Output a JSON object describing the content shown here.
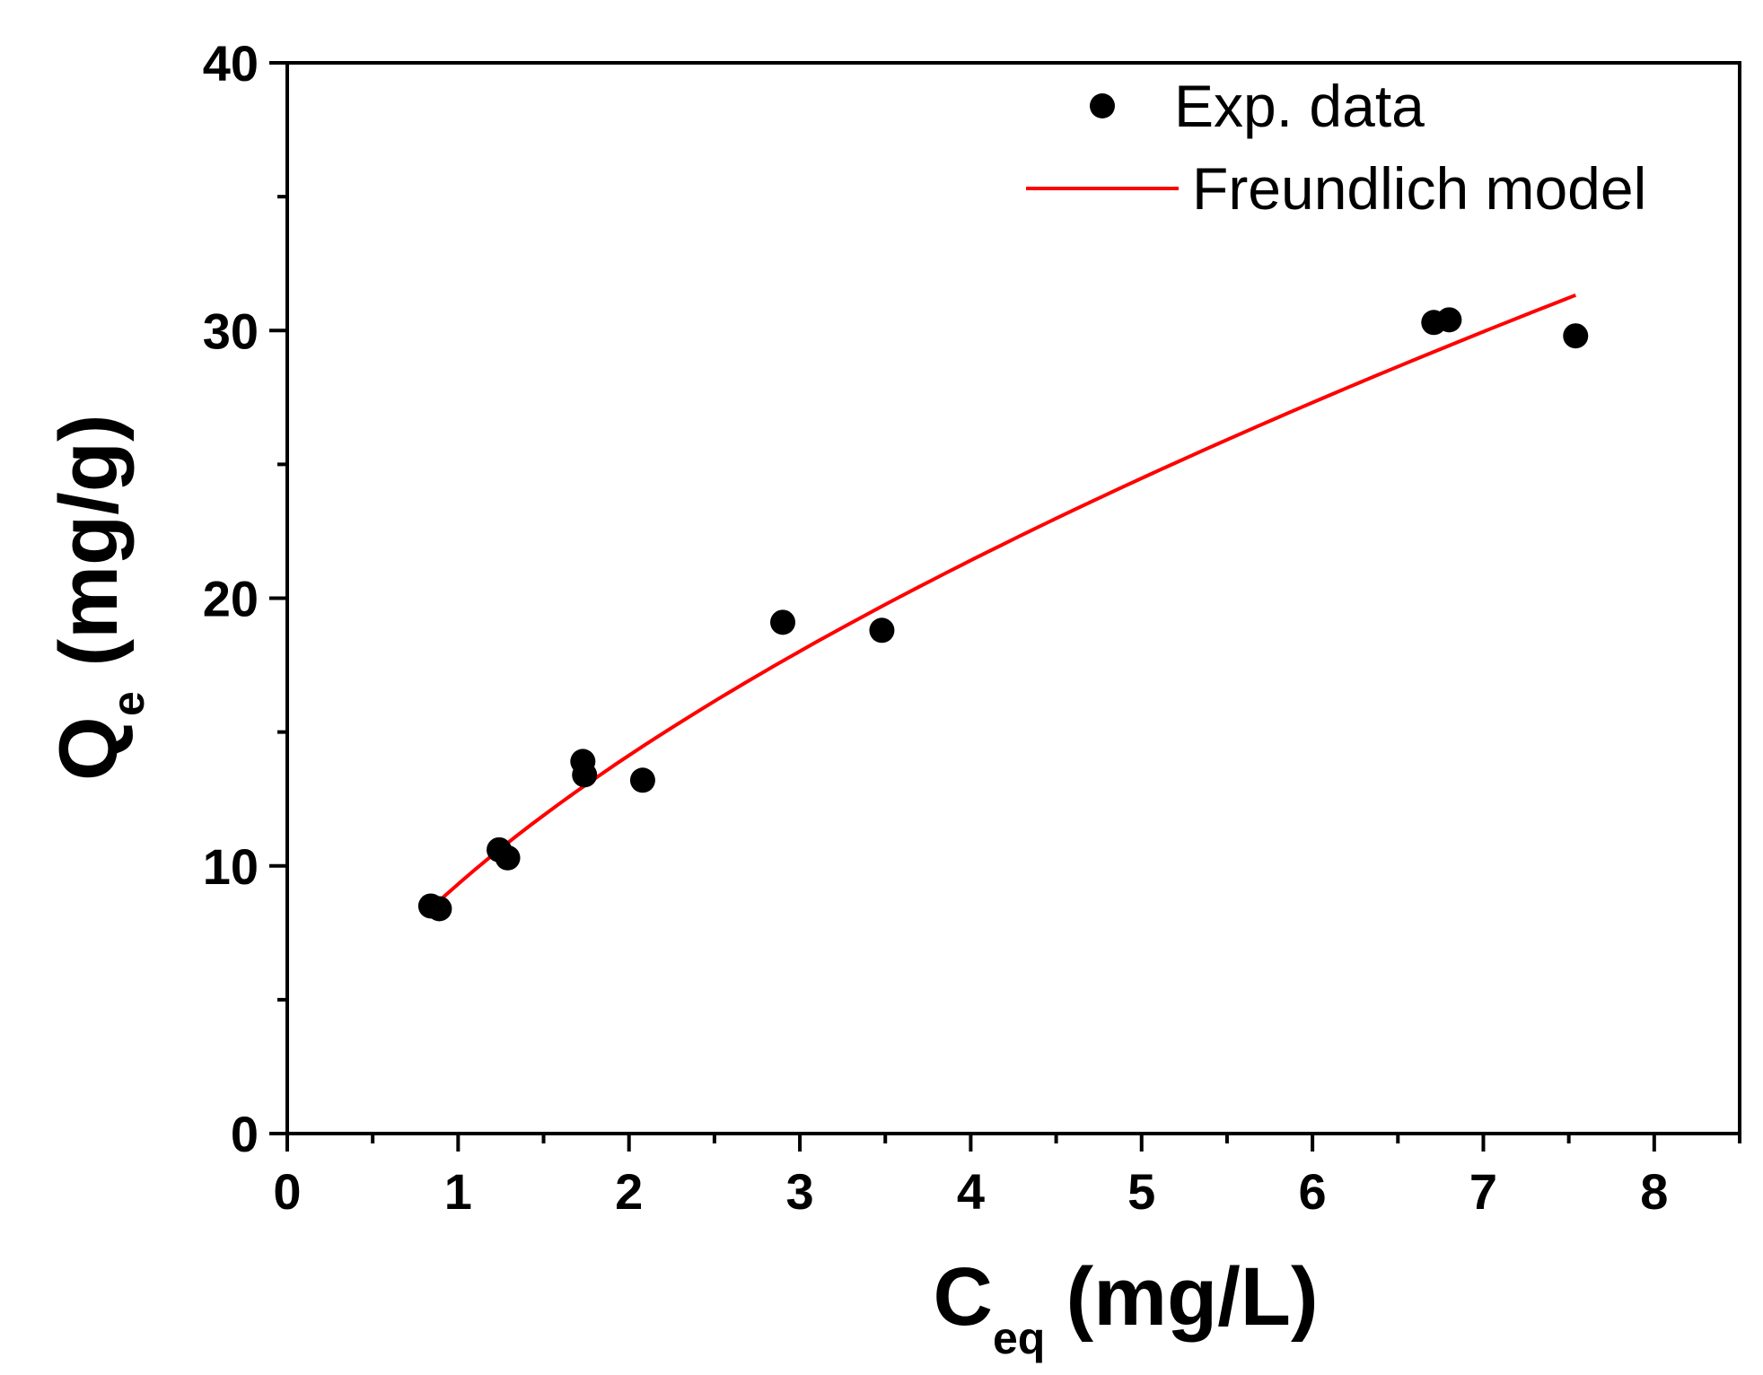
{
  "chart_data": {
    "type": "scatter",
    "x_axis": {
      "label_main": "C",
      "label_sub": "eq",
      "label_unit": " (mg/L)",
      "range": [
        0,
        8.5
      ],
      "major_ticks": [
        0,
        1,
        2,
        3,
        4,
        5,
        6,
        7,
        8
      ],
      "tick_labels": [
        "0",
        "1",
        "2",
        "3",
        "4",
        "5",
        "6",
        "7",
        "8"
      ],
      "minor_ticks": [
        0.5,
        1.5,
        2.5,
        3.5,
        4.5,
        5.5,
        6.5,
        7.5,
        8.5
      ]
    },
    "y_axis": {
      "label_main": "Q",
      "label_sub": "e",
      "label_unit": " (mg/g)",
      "range": [
        0,
        40
      ],
      "major_ticks": [
        0,
        10,
        20,
        30,
        40
      ],
      "tick_labels": [
        "0",
        "10",
        "20",
        "30",
        "40"
      ],
      "minor_ticks": [
        5,
        15,
        25,
        35
      ]
    },
    "grid": false,
    "legend": {
      "position": "top-right",
      "entries": [
        "Exp. data",
        "Freundlich model"
      ]
    },
    "series": [
      {
        "name": "Exp. data",
        "kind": "scatter",
        "color": "#000000",
        "x": [
          0.84,
          0.89,
          1.24,
          1.29,
          1.73,
          1.74,
          2.08,
          2.9,
          3.48,
          6.71,
          6.8,
          7.54
        ],
        "y": [
          8.5,
          8.4,
          10.6,
          10.3,
          13.9,
          13.4,
          13.2,
          19.1,
          18.8,
          30.3,
          30.4,
          29.8
        ]
      },
      {
        "name": "Freundlich model",
        "kind": "line",
        "color": "#ff0000",
        "model": {
          "K": 9.32,
          "n_inverse": 0.6,
          "x_start": 0.84,
          "x_end": 7.54
        }
      }
    ]
  }
}
